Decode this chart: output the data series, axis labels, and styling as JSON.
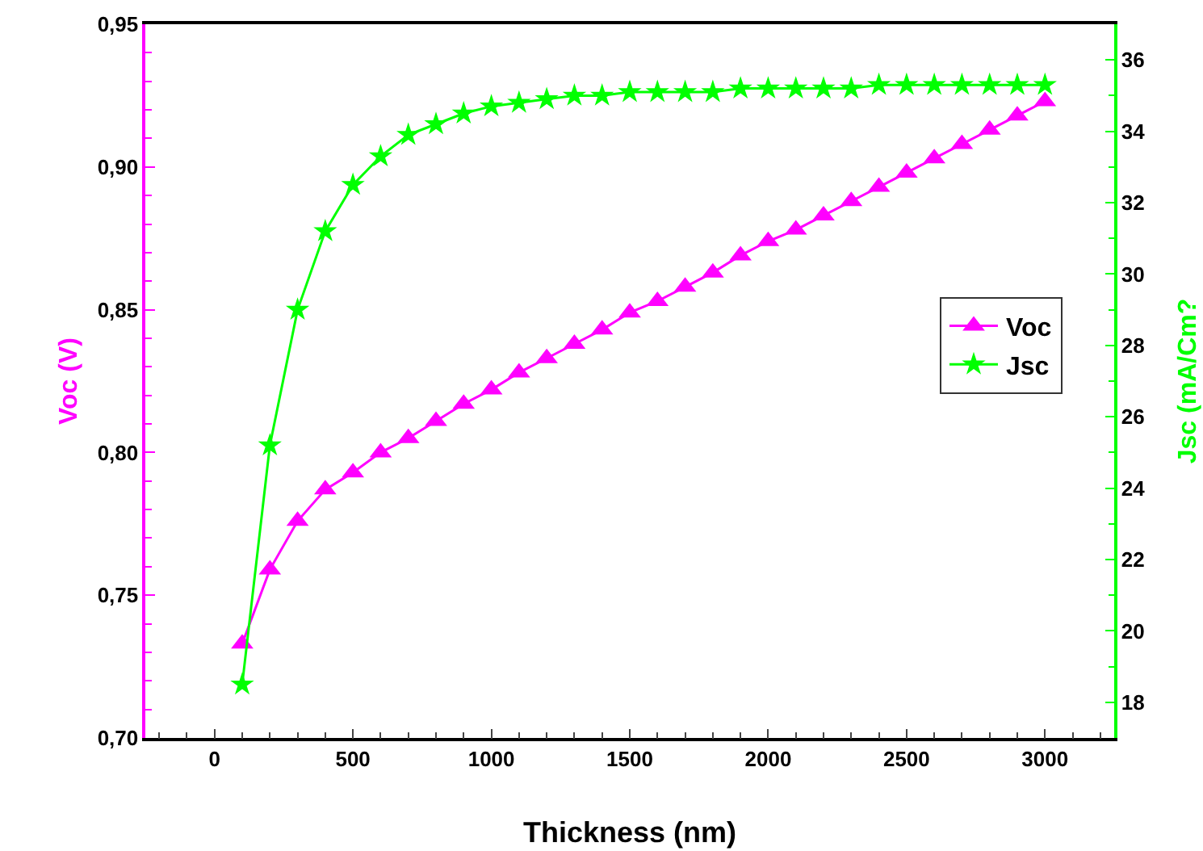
{
  "chart_data": {
    "type": "line",
    "xlabel": "Thickness (nm)",
    "ylabel": "Voc (V)",
    "y2label": "Jsc (mA/Cm?",
    "x": [
      100,
      200,
      300,
      400,
      500,
      600,
      700,
      800,
      900,
      1000,
      1100,
      1200,
      1300,
      1400,
      1500,
      1600,
      1700,
      1800,
      1900,
      2000,
      2100,
      2200,
      2300,
      2400,
      2500,
      2600,
      2700,
      2800,
      2900,
      3000
    ],
    "series": [
      {
        "name": "Voc",
        "color": "#ff00ff",
        "marker": "triangle",
        "values": [
          0.733,
          0.759,
          0.776,
          0.787,
          0.793,
          0.8,
          0.805,
          0.811,
          0.817,
          0.822,
          0.828,
          0.833,
          0.838,
          0.843,
          0.849,
          0.853,
          0.858,
          0.863,
          0.869,
          0.874,
          0.878,
          0.883,
          0.888,
          0.893,
          0.898,
          0.903,
          0.908,
          0.913,
          0.918,
          0.923
        ]
      },
      {
        "name": "Jsc",
        "color": "#00ff00",
        "marker": "star",
        "axis": "y2",
        "values": [
          18.5,
          25.2,
          29.0,
          31.2,
          32.5,
          33.3,
          33.9,
          34.2,
          34.5,
          34.7,
          34.8,
          34.9,
          35.0,
          35.0,
          35.1,
          35.1,
          35.1,
          35.1,
          35.2,
          35.2,
          35.2,
          35.2,
          35.2,
          35.3,
          35.3,
          35.3,
          35.3,
          35.3,
          35.3,
          35.3
        ]
      }
    ],
    "xlim": [
      -250,
      3250
    ],
    "xticks": [
      0,
      500,
      1000,
      1500,
      2000,
      2500,
      3000
    ],
    "ylim": [
      0.7,
      0.95
    ],
    "yticks": [
      {
        "value": 0.7,
        "label": "0,70"
      },
      {
        "value": 0.75,
        "label": "0,75"
      },
      {
        "value": 0.8,
        "label": "0,80"
      },
      {
        "value": 0.85,
        "label": "0,85"
      },
      {
        "value": 0.9,
        "label": "0,90"
      },
      {
        "value": 0.95,
        "label": "0,95"
      }
    ],
    "y2lim": [
      17,
      37
    ],
    "y2ticks": [
      18,
      20,
      22,
      24,
      26,
      28,
      30,
      32,
      34,
      36
    ],
    "grid": false,
    "legend": "right",
    "line_style": "solid"
  }
}
